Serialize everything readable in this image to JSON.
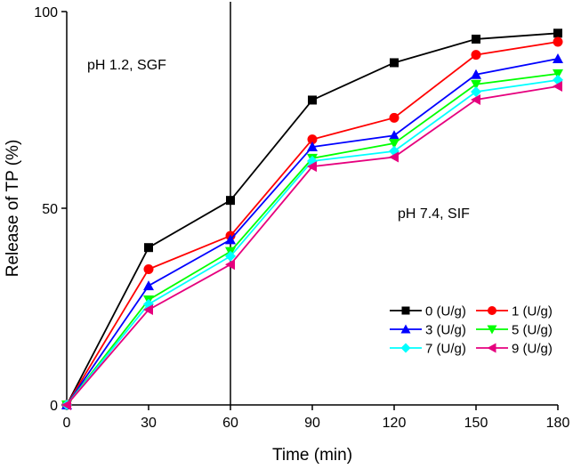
{
  "chart_data": {
    "type": "line",
    "title": "",
    "xlabel": "Time (min)",
    "ylabel": "Release of TP (%)",
    "xlim": [
      0,
      180
    ],
    "ylim": [
      0,
      100
    ],
    "xticks": [
      0,
      30,
      60,
      90,
      120,
      150,
      180
    ],
    "yticks": [
      0,
      50,
      100
    ],
    "grid": false,
    "legend_position": "bottom-right",
    "x": [
      0,
      30,
      60,
      90,
      120,
      150,
      180
    ],
    "vline": 60,
    "annotations": [
      {
        "text": "pH 1.2, SGF",
        "x": 8,
        "y": 86
      },
      {
        "text": "pH 7.4, SIF",
        "x": 122,
        "y": 49
      }
    ],
    "series": [
      {
        "name": "0 (U/g)",
        "color": "#000000",
        "marker": "square",
        "values": [
          0,
          40,
          52,
          77.5,
          87,
          93,
          94.5
        ]
      },
      {
        "name": "1 (U/g)",
        "color": "#ff0000",
        "marker": "circle",
        "values": [
          0,
          34.5,
          43,
          67.5,
          73,
          89,
          92.3
        ]
      },
      {
        "name": "3 (U/g)",
        "color": "#0000ff",
        "marker": "triangle-up",
        "values": [
          0,
          30.3,
          42,
          65.6,
          68.5,
          84,
          88
        ]
      },
      {
        "name": "5 (U/g)",
        "color": "#00ff00",
        "marker": "triangle-down",
        "values": [
          0,
          26.7,
          39,
          62.7,
          66.5,
          81.5,
          84.2
        ]
      },
      {
        "name": "7 (U/g)",
        "color": "#00ffff",
        "marker": "diamond",
        "values": [
          0,
          25.6,
          37.8,
          62,
          64.5,
          79.6,
          82.6
        ]
      },
      {
        "name": "9 (U/g)",
        "color": "#e6007e",
        "marker": "triangle-left",
        "values": [
          0,
          24.2,
          35.7,
          60.6,
          63,
          77.6,
          81
        ]
      }
    ]
  }
}
